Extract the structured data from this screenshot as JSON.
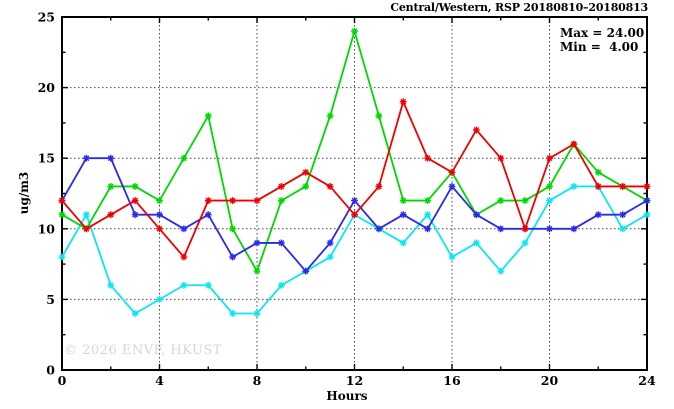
{
  "chart": {
    "title": "Central/Western, RSP 20180810–20180813",
    "stats": {
      "max": "Max = 24.00",
      "min": "Min =  4.00"
    },
    "ylabel": "ug/m3",
    "xlabel": "Hours",
    "watermark": "© 2026 ENVF, HKUST"
  },
  "chart_data": {
    "type": "line",
    "title": "Central/Western, RSP 20180810–20180813",
    "xlabel": "Hours",
    "ylabel": "ug/m3",
    "xlim": [
      0,
      24
    ],
    "ylim": [
      0,
      25
    ],
    "x_major_ticks": [
      0,
      4,
      8,
      12,
      16,
      20,
      24
    ],
    "x_minor_ticks": [
      2,
      6,
      10,
      14,
      18,
      22
    ],
    "y_major_ticks": [
      0,
      5,
      10,
      15,
      20,
      25
    ],
    "y_minor_ticks": [
      2.5,
      7.5,
      12.5,
      17.5,
      22.5
    ],
    "grid": true,
    "legend_position": "none",
    "annotations": {
      "max": 24.0,
      "min": 4.0
    },
    "x": [
      0,
      1,
      2,
      3,
      4,
      5,
      6,
      7,
      8,
      9,
      10,
      11,
      12,
      13,
      14,
      15,
      16,
      17,
      18,
      19,
      20,
      21,
      22,
      23,
      24
    ],
    "series": [
      {
        "name": "series-cyan",
        "color": "#0ce6f2",
        "values": [
          8,
          11,
          6,
          4,
          5,
          6,
          6,
          4,
          4,
          6,
          7,
          8,
          11,
          10,
          9,
          11,
          8,
          9,
          7,
          9,
          12,
          13,
          13,
          10,
          11
        ]
      },
      {
        "name": "series-green",
        "color": "#00d800",
        "values": [
          11,
          10,
          13,
          13,
          12,
          15,
          18,
          10,
          7,
          12,
          13,
          18,
          24,
          18,
          12,
          12,
          14,
          11,
          12,
          12,
          13,
          16,
          14,
          13,
          12
        ]
      },
      {
        "name": "series-blue",
        "color": "#2a2ae8",
        "values": [
          12,
          15,
          15,
          11,
          11,
          10,
          11,
          8,
          9,
          9,
          7,
          9,
          12,
          10,
          11,
          10,
          13,
          11,
          10,
          10,
          10,
          10,
          11,
          11,
          12
        ]
      },
      {
        "name": "series-red",
        "color": "#f00000",
        "values": [
          12,
          10,
          11,
          12,
          10,
          8,
          12,
          12,
          12,
          13,
          14,
          13,
          11,
          13,
          19,
          15,
          14,
          17,
          15,
          10,
          15,
          16,
          13,
          13,
          13
        ]
      }
    ]
  },
  "colors": {
    "grid": "#444444",
    "border": "#000000",
    "watermark": "#d6d6d6"
  }
}
